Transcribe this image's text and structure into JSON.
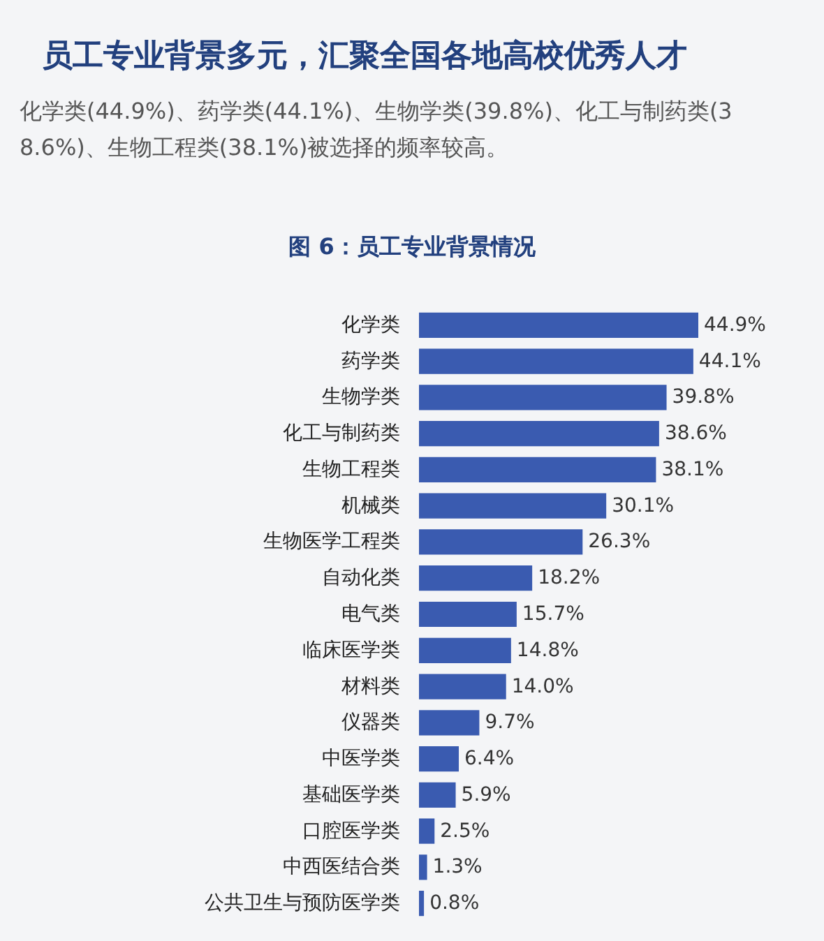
{
  "chart_data": {
    "type": "bar",
    "orientation": "horizontal",
    "title": "图 6：员工专业背景情况",
    "annotations": [
      "员工专业背景多元，汇聚全国各地高校优秀人才",
      "化学类(44.9%)、药学类(44.1%)、生物学类(39.8%)、化工与制药类(38.6%)、生物工程类(38.1%)被选择的频率较高。"
    ],
    "categories": [
      "化学类",
      "药学类",
      "生物学类",
      "化工与制药类",
      "生物工程类",
      "机械类",
      "生物医学工程类",
      "自动化类",
      "电气类",
      "临床医学类",
      "材料类",
      "仪器类",
      "中医学类",
      "基础医学类",
      "口腔医学类",
      "中西医结合类",
      "公共卫生与预防医学类"
    ],
    "values": [
      44.9,
      44.1,
      39.8,
      38.6,
      38.1,
      30.1,
      26.3,
      18.2,
      15.7,
      14.8,
      14.0,
      9.7,
      6.4,
      5.9,
      2.5,
      1.3,
      0.8
    ],
    "value_labels": [
      "44.9%",
      "44.1%",
      "39.8%",
      "38.6%",
      "38.1%",
      "30.1%",
      "26.3%",
      "18.2%",
      "15.7%",
      "14.8%",
      "14.0%",
      "9.7%",
      "6.4%",
      "5.9%",
      "2.5%",
      "1.3%",
      "0.8%"
    ],
    "color": "#3a5bb0"
  }
}
